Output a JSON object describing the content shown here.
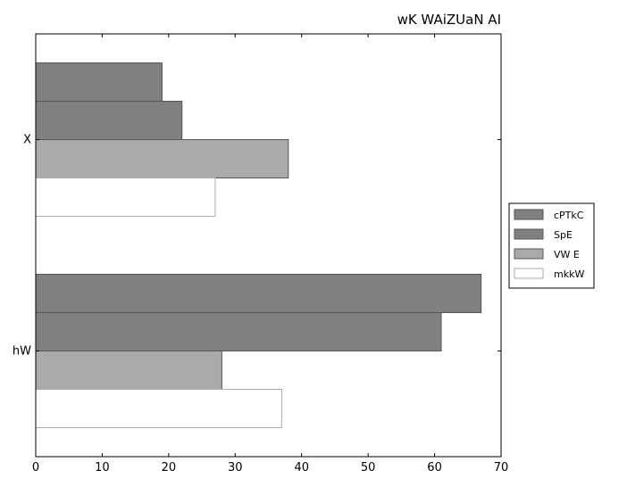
{
  "chart_data": {
    "type": "bar",
    "orientation": "horizontal",
    "title": "wK WAiZUaN AI",
    "xlabel": "",
    "ylabel": "",
    "categories": [
      "X",
      "hW"
    ],
    "xlim": [
      0,
      70
    ],
    "xticks": [
      0,
      10,
      20,
      30,
      40,
      50,
      60,
      70
    ],
    "grid": false,
    "legend_position": "right",
    "series": [
      {
        "name": "cPTkC",
        "color": "#808080",
        "values": [
          19,
          67
        ]
      },
      {
        "name": "SpE",
        "color": "#808080",
        "values": [
          22,
          61
        ]
      },
      {
        "name": "VW E",
        "color": "#aaaaaa",
        "values": [
          38,
          28
        ]
      },
      {
        "name": "mkkW",
        "color": "#ffffff",
        "values": [
          27,
          37
        ]
      }
    ]
  }
}
